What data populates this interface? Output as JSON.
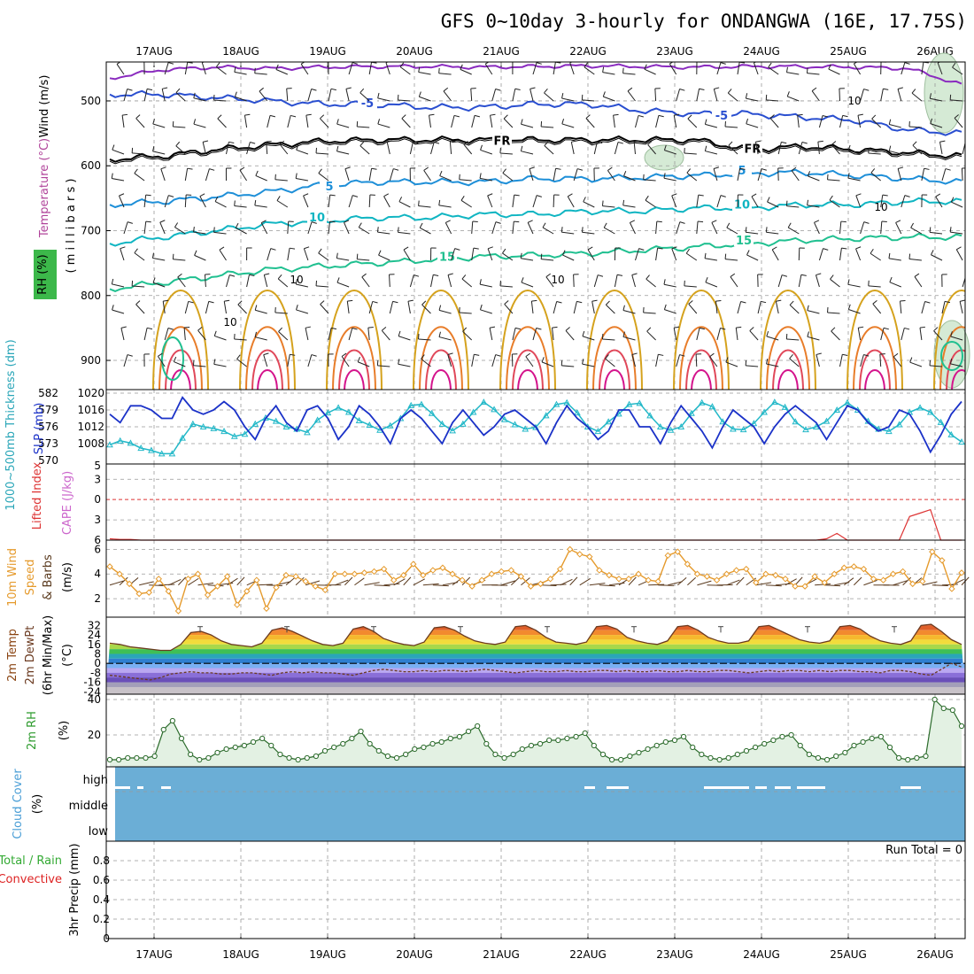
{
  "title": "GFS 0~10day 3-hourly for ONDANGWA (16E, 17.75S)",
  "dates": [
    "17AUG",
    "18AUG",
    "19AUG",
    "20AUG",
    "21AUG",
    "22AUG",
    "23AUG",
    "24AUG",
    "25AUG",
    "26AUG"
  ],
  "run_total": "Run Total = 0",
  "colors": {
    "slp": "#1b32c8",
    "thickness": "#22b8c8",
    "wind": "#e59a2c",
    "barb": "#5a3a1e",
    "lifted": "#dd3333",
    "cape": "#cc66cc",
    "rh": "#2e9b2e",
    "rh_fill": "#e3f1e3",
    "cloud": "#6baed6",
    "precip_total": "#33aa33",
    "precip_conv": "#dd2222"
  },
  "labels": {
    "upper": {
      "rh": "RH (%)",
      "temperature": "Temperature (°C)",
      "wind": "Wind (m/s)",
      "units": "( m i l l i b a r s )"
    },
    "slp": {
      "thickness": "1000~500mb Thickness (dm)",
      "slp": "SLP (mb)"
    },
    "cape": {
      "lifted": "Lifted Index",
      "cape": "CAPE (J/kg)"
    },
    "wind10": {
      "l1": "10m Wind",
      "l2": "Speed",
      "l3": "& Barbs",
      "unit": "(m/s)"
    },
    "temp2m": {
      "l1": "2m Temp",
      "l2": "2m DewPt",
      "l3": "(6hr Min/Max)",
      "unit": "(°C)"
    },
    "rh2m": {
      "l1": "2m RH",
      "unit": "(%)"
    },
    "cloud": {
      "l1": "Cloud Cover",
      "unit": "(%)"
    },
    "precip": {
      "total": "Total / Rain",
      "conv": "Convective",
      "l3": "3hr Precip (mm)"
    }
  },
  "chart_data": [
    {
      "panel": "upper-air",
      "type": "heatmap",
      "yaxis": {
        "label": "millibars",
        "ticks": [
          500,
          600,
          700,
          800,
          900
        ],
        "range": [
          440,
          945
        ]
      },
      "temperature_contours": [
        {
          "label": "-5",
          "level_mb": [
            490,
            490,
            495,
            500,
            505,
            505,
            510,
            510,
            505,
            505,
            515,
            520,
            520,
            525,
            530,
            545,
            550
          ]
        },
        {
          "label": "FR",
          "level_mb": [
            590,
            585,
            575,
            568,
            562,
            560,
            560,
            560,
            560,
            560,
            560,
            560,
            575,
            570,
            575,
            580,
            585
          ]
        },
        {
          "label": "5",
          "level_mb": [
            660,
            655,
            648,
            640,
            630,
            625,
            625,
            625,
            620,
            620,
            618,
            615,
            612,
            610,
            615,
            620,
            625
          ]
        },
        {
          "label": "10",
          "level_mb": [
            720,
            710,
            700,
            690,
            685,
            680,
            680,
            675,
            675,
            670,
            670,
            665,
            665,
            660,
            660,
            655,
            655
          ]
        },
        {
          "label": "15",
          "level_mb": [
            790,
            780,
            770,
            760,
            755,
            750,
            745,
            740,
            738,
            735,
            730,
            725,
            720,
            715,
            712,
            710,
            710
          ]
        }
      ],
      "purple_line_mb": [
        465,
        452,
        448,
        450,
        448,
        447,
        447,
        448,
        447,
        446,
        447,
        448,
        447,
        447,
        448,
        450,
        475
      ]
    },
    {
      "panel": "slp-thickness",
      "type": "line",
      "y_left": {
        "label": "1000~500mb Thickness (dm)",
        "ticks": [
          570,
          573,
          576,
          579,
          582
        ],
        "range": [
          570,
          582
        ]
      },
      "y_right": {
        "label": "SLP (mb)",
        "ticks": [
          1008,
          1012,
          1016,
          1020
        ],
        "range": [
          1004,
          1020
        ]
      },
      "series": [
        {
          "name": "SLP",
          "values": [
            1015,
            1013,
            1017,
            1017,
            1016,
            1014,
            1014,
            1019,
            1016,
            1015,
            1016,
            1018,
            1016,
            1012,
            1009,
            1014,
            1017,
            1013,
            1011,
            1016,
            1017,
            1014,
            1009,
            1012,
            1017,
            1015,
            1012,
            1008,
            1014,
            1016,
            1014,
            1011,
            1008,
            1013,
            1016,
            1013,
            1010,
            1012,
            1015,
            1016,
            1014,
            1012,
            1008,
            1013,
            1017,
            1014,
            1012,
            1009,
            1011,
            1016,
            1016,
            1012,
            1012,
            1008,
            1013,
            1017,
            1014,
            1011,
            1007,
            1012,
            1016,
            1014,
            1012,
            1008,
            1012,
            1015,
            1017,
            1015,
            1013,
            1009,
            1013,
            1017,
            1016,
            1013,
            1011,
            1012,
            1016,
            1015,
            1011,
            1006,
            1010,
            1015,
            1018
          ]
        },
        {
          "name": "Thickness",
          "values": [
            572.8,
            573.5,
            573.1,
            572.2,
            571.8,
            571.2,
            571.2,
            574.0,
            576.5,
            576.0,
            575.7,
            575.2,
            574.3,
            574.7,
            576.5,
            577.6,
            577.0,
            576.0,
            575.6,
            575.0,
            577.2,
            578.5,
            579.4,
            578.6,
            577.1,
            576.3,
            575.4,
            576.2,
            577.5,
            579.8,
            580.0,
            578.4,
            576.5,
            575.3,
            576.5,
            578.6,
            580.4,
            579.1,
            577.3,
            576.4,
            575.6,
            575.9,
            578.0,
            580.0,
            580.3,
            578.5,
            576.0,
            575.2,
            576.9,
            578.3,
            580.0,
            580.2,
            578.0,
            576.0,
            575.4,
            576.0,
            578.4,
            580.3,
            579.6,
            576.9,
            575.6,
            575.5,
            576.6,
            578.6,
            580.4,
            579.5,
            576.9,
            575.5,
            576.0,
            577.0,
            579.0,
            580.3,
            579.0,
            577.0,
            575.6,
            575.2,
            576.4,
            578.6,
            579.4,
            578.6,
            576.8,
            574.6,
            573.3
          ]
        }
      ]
    },
    {
      "panel": "lifted-cape",
      "type": "line",
      "yaxis": {
        "ticks": [
          -5,
          -3,
          0,
          3,
          6
        ],
        "range": [
          -5,
          6
        ],
        "inverted": true
      },
      "series": [
        {
          "name": "Lifted Index",
          "values": [
            5.8,
            5.9,
            5.9,
            6,
            6,
            6,
            6,
            6,
            6,
            6,
            6,
            6,
            6,
            6,
            6,
            6,
            6,
            6,
            6,
            6,
            6,
            6,
            6,
            6,
            6,
            6,
            6,
            6,
            6,
            6,
            6,
            6,
            6,
            6,
            6,
            6,
            6,
            6,
            6,
            6,
            6,
            6,
            6,
            6,
            6,
            6,
            6,
            6,
            6,
            6,
            6,
            6,
            6,
            6,
            6,
            6,
            6,
            6,
            6,
            6,
            6,
            6,
            6,
            6,
            6,
            6,
            6,
            6,
            6,
            5.8,
            5.0,
            6,
            6,
            6,
            6,
            6,
            6,
            2.5,
            2.0,
            1.5,
            6,
            6,
            6
          ]
        }
      ]
    },
    {
      "panel": "10m-wind",
      "type": "line",
      "yaxis": {
        "label": "m/s",
        "ticks": [
          2,
          4,
          6
        ],
        "range": [
          0.5,
          6.6
        ]
      },
      "series": [
        {
          "name": "10m Wind Speed",
          "values": [
            4.6,
            4.0,
            3.2,
            2.4,
            2.5,
            3.6,
            2.6,
            1.0,
            3.6,
            4.0,
            2.3,
            3.0,
            3.8,
            1.5,
            2.6,
            3.5,
            1.2,
            2.9,
            3.9,
            3.8,
            3.4,
            3.0,
            2.7,
            4.0,
            4.0,
            4.0,
            4.1,
            4.2,
            4.4,
            3.5,
            3.9,
            4.8,
            3.9,
            4.3,
            4.5,
            4.0,
            3.5,
            3.0,
            3.5,
            4.0,
            4.2,
            4.3,
            3.8,
            3.0,
            3.2,
            3.6,
            4.4,
            6.0,
            5.6,
            5.4,
            4.3,
            3.9,
            3.6,
            3.6,
            4.0,
            3.5,
            3.4,
            5.5,
            5.8,
            4.8,
            4.0,
            3.8,
            3.5,
            4.0,
            4.3,
            4.4,
            3.3,
            4.0,
            3.9,
            3.6,
            3.0,
            3.0,
            3.8,
            3.3,
            4.0,
            4.5,
            4.6,
            4.4,
            3.6,
            3.5,
            4.0,
            4.2,
            3.2,
            3.4,
            5.8,
            5.1,
            2.8,
            4.1
          ]
        }
      ]
    },
    {
      "panel": "2m-temp",
      "type": "area",
      "yaxis": {
        "label": "°C",
        "ticks": [
          -24,
          -16,
          -8,
          0,
          8,
          16,
          24,
          32
        ],
        "range": [
          -26,
          36
        ]
      },
      "series": [
        {
          "name": "2m Temp",
          "values": [
            17,
            16,
            14,
            13,
            12,
            11,
            11,
            16,
            26,
            27,
            24,
            19,
            16,
            15,
            14,
            17,
            28,
            30,
            27,
            23,
            19,
            16,
            15,
            17,
            29,
            31,
            27,
            21,
            18,
            16,
            15,
            18,
            30,
            31,
            28,
            23,
            19,
            17,
            16,
            18,
            31,
            32,
            28,
            22,
            18,
            17,
            16,
            18,
            31,
            32,
            29,
            22,
            19,
            17,
            16,
            19,
            31,
            32,
            28,
            22,
            19,
            17,
            17,
            19,
            31,
            32,
            28,
            24,
            20,
            18,
            17,
            19,
            31,
            32,
            29,
            23,
            19,
            17,
            16,
            19,
            32,
            33,
            27,
            20,
            16
          ]
        },
        {
          "name": "2m DewPt",
          "values": [
            -10,
            -11,
            -12,
            -13,
            -14,
            -12,
            -9,
            -8,
            -7,
            -8,
            -8,
            -9,
            -9,
            -8,
            -8,
            -9,
            -10,
            -8,
            -7,
            -8,
            -7,
            -8,
            -8,
            -9,
            -10,
            -8,
            -6,
            -5,
            -6,
            -7,
            -7,
            -6,
            -7,
            -6,
            -6,
            -7,
            -6,
            -5,
            -6,
            -7,
            -8,
            -7,
            -6,
            -7,
            -7,
            -6,
            -7,
            -7,
            -6,
            -6,
            -7,
            -6,
            -7,
            -7,
            -6,
            -7,
            -7,
            -6,
            -7,
            -7,
            -6,
            -6,
            -7,
            -8,
            -7,
            -6,
            -7,
            -6,
            -6,
            -7,
            -6,
            -7,
            -6,
            -6,
            -7,
            -7,
            -8,
            -6,
            -6,
            -7,
            -9,
            -10,
            -5,
            0,
            -3
          ]
        }
      ]
    },
    {
      "panel": "2m-rh",
      "type": "area",
      "yaxis": {
        "label": "%",
        "ticks": [
          20,
          40
        ],
        "range": [
          2,
          42
        ]
      },
      "series": [
        {
          "name": "2m RH",
          "values": [
            6,
            6,
            7,
            7,
            7,
            8,
            23,
            28,
            18,
            9,
            6,
            7,
            10,
            12,
            13,
            14,
            16,
            18,
            14,
            9,
            7,
            6,
            7,
            8,
            11,
            13,
            15,
            18,
            22,
            15,
            11,
            8,
            7,
            9,
            12,
            13,
            15,
            16,
            18,
            19,
            22,
            25,
            15,
            9,
            7,
            9,
            12,
            14,
            15,
            17,
            17,
            18,
            19,
            21,
            14,
            9,
            6,
            6,
            8,
            10,
            12,
            14,
            16,
            17,
            19,
            13,
            9,
            7,
            6,
            7,
            9,
            11,
            13,
            15,
            17,
            19,
            20,
            14,
            9,
            7,
            6,
            8,
            10,
            14,
            16,
            18,
            19,
            13,
            7,
            6,
            7,
            8,
            40,
            35,
            34,
            25
          ]
        }
      ]
    },
    {
      "panel": "cloud-cover",
      "type": "area",
      "levels": [
        "high",
        "middle",
        "low"
      ],
      "series": [
        {
          "name": "high",
          "percent": 97
        },
        {
          "name": "middle",
          "percent": 100
        },
        {
          "name": "low",
          "percent": 100
        }
      ]
    },
    {
      "panel": "precip",
      "type": "bar",
      "yaxis": {
        "label": "3hr Precip (mm)",
        "ticks": [
          "0",
          "0.2",
          "0.4",
          "0.6",
          "0.8"
        ],
        "range": [
          0,
          1
        ]
      },
      "series": [
        {
          "name": "Total / Rain",
          "values": [
            0
          ]
        },
        {
          "name": "Convective",
          "values": [
            0
          ]
        }
      ]
    }
  ]
}
